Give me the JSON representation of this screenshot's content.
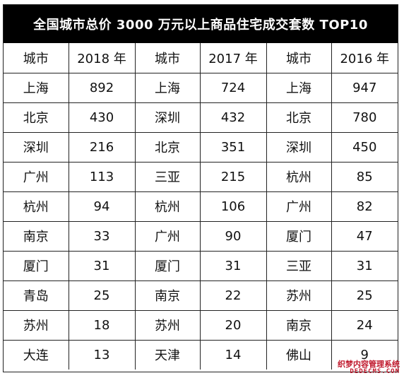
{
  "title": "全国城市总价 3000 万元以上商品住宅成交套数 TOP10",
  "headers": [
    "城市",
    "2018 年",
    "城市",
    "2017 年",
    "城市",
    "2016 年"
  ],
  "rows": [
    [
      "上海",
      "892",
      "上海",
      "724",
      "上海",
      "947"
    ],
    [
      "北京",
      "430",
      "深圳",
      "432",
      "北京",
      "780"
    ],
    [
      "深圳",
      "216",
      "北京",
      "351",
      "深圳",
      "450"
    ],
    [
      "广州",
      "113",
      "三亚",
      "215",
      "杭州",
      "85"
    ],
    [
      "杭州",
      "94",
      "杭州",
      "106",
      "广州",
      "82"
    ],
    [
      "南京",
      "33",
      "广州",
      "90",
      "厦门",
      "47"
    ],
    [
      "厦门",
      "31",
      "厦门",
      "31",
      "三亚",
      "31"
    ],
    [
      "青岛",
      "25",
      "南京",
      "22",
      "苏州",
      "25"
    ],
    [
      "苏州",
      "18",
      "苏州",
      "20",
      "南京",
      "24"
    ],
    [
      "大连",
      "13",
      "天津",
      "14",
      "佛山",
      "9"
    ]
  ],
  "watermark": {
    "line1": "织梦内容管理系统",
    "line2": "DEDECMS.COM"
  },
  "colors": {
    "title_bg": "#000000",
    "title_text": "#ffffff",
    "watermark": "#c0182c"
  }
}
